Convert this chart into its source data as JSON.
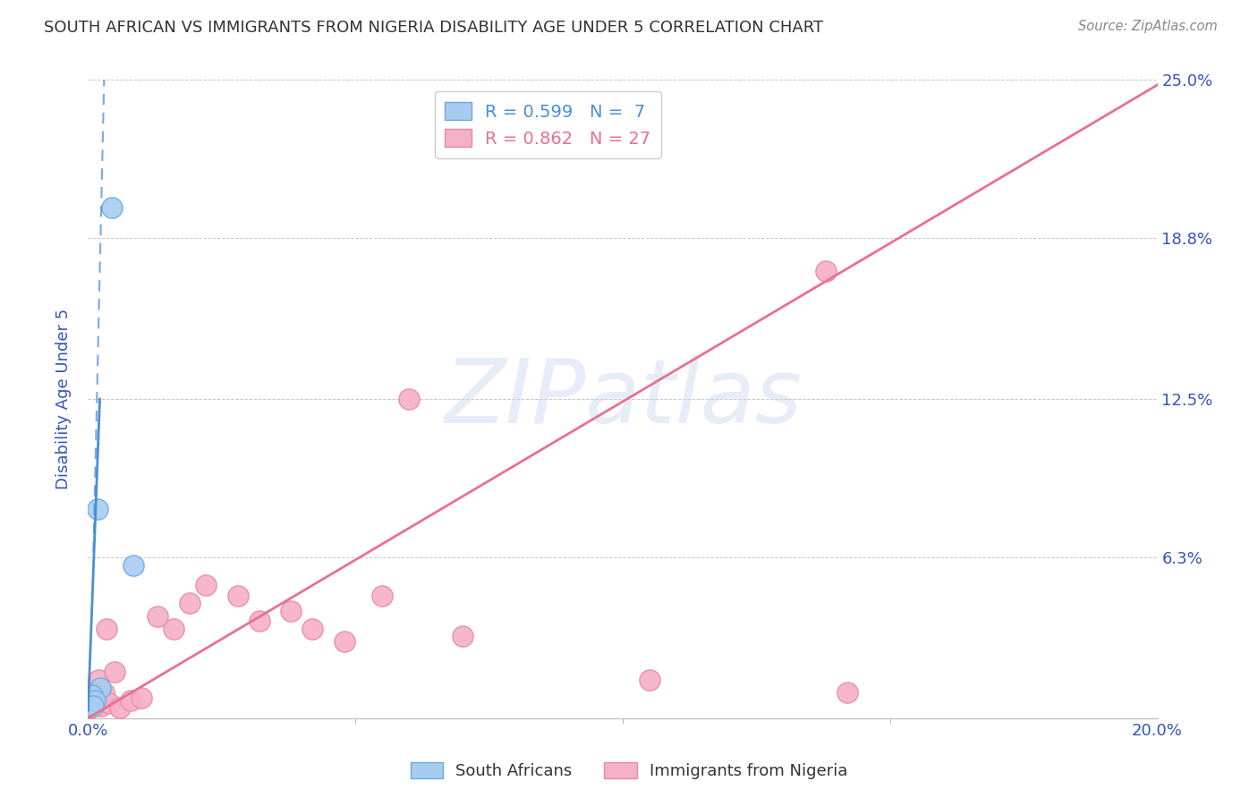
{
  "title": "SOUTH AFRICAN VS IMMIGRANTS FROM NIGERIA DISABILITY AGE UNDER 5 CORRELATION CHART",
  "source": "Source: ZipAtlas.com",
  "ylabel_label": "Disability Age Under 5",
  "xlim": [
    0.0,
    20.0
  ],
  "ylim": [
    0.0,
    25.0
  ],
  "ytick_vals": [
    6.3,
    12.5,
    18.8,
    25.0
  ],
  "xtick_vals": [
    0.0,
    20.0
  ],
  "xtick_minor_vals": [
    5.0,
    10.0,
    15.0
  ],
  "watermark_text": "ZIPatlas",
  "legend_blue_R": "0.599",
  "legend_blue_N": "7",
  "legend_pink_R": "0.862",
  "legend_pink_N": "27",
  "legend_label_blue": "South Africans",
  "legend_label_pink": "Immigrants from Nigeria",
  "blue_scatter_x": [
    0.45,
    0.18,
    0.22,
    0.85,
    0.08,
    0.12,
    0.1
  ],
  "blue_scatter_y": [
    20.0,
    8.2,
    1.2,
    6.0,
    0.9,
    0.7,
    0.5
  ],
  "pink_scatter_x": [
    0.05,
    0.1,
    0.15,
    0.2,
    0.25,
    0.3,
    0.35,
    0.4,
    0.5,
    0.6,
    0.8,
    1.0,
    1.3,
    1.6,
    1.9,
    2.2,
    2.8,
    3.2,
    3.8,
    4.2,
    4.8,
    5.5,
    6.0,
    7.0,
    10.5,
    13.8,
    14.2
  ],
  "pink_scatter_y": [
    0.4,
    0.6,
    0.8,
    1.5,
    0.5,
    1.0,
    3.5,
    0.6,
    1.8,
    0.4,
    0.7,
    0.8,
    4.0,
    3.5,
    4.5,
    5.2,
    4.8,
    3.8,
    4.2,
    3.5,
    3.0,
    4.8,
    12.5,
    3.2,
    1.5,
    17.5,
    1.0
  ],
  "blue_line_color": "#4a8fd4",
  "pink_line_color": "#e87090",
  "blue_scatter_facecolor": "#a8ccf0",
  "blue_scatter_edgecolor": "#6aaade",
  "pink_scatter_facecolor": "#f5b0c8",
  "pink_scatter_edgecolor": "#e888a8",
  "grid_color": "#c8c8c8",
  "axis_tick_color": "#3355bb",
  "ylabel_color": "#3355bb",
  "title_color": "#333333",
  "source_color": "#888888",
  "bg_color": "#ffffff",
  "pink_line_x0": 0.0,
  "pink_line_y0": 0.0,
  "pink_line_x1": 20.0,
  "pink_line_y1": 24.8,
  "blue_line_solid_x0": 0.0,
  "blue_line_solid_y0": 0.3,
  "blue_line_solid_x1": 0.22,
  "blue_line_solid_y1": 12.5,
  "blue_line_dash_x0": 0.1,
  "blue_line_dash_y0": 6.5,
  "blue_line_dash_x1": 0.3,
  "blue_line_dash_y1": 25.0
}
